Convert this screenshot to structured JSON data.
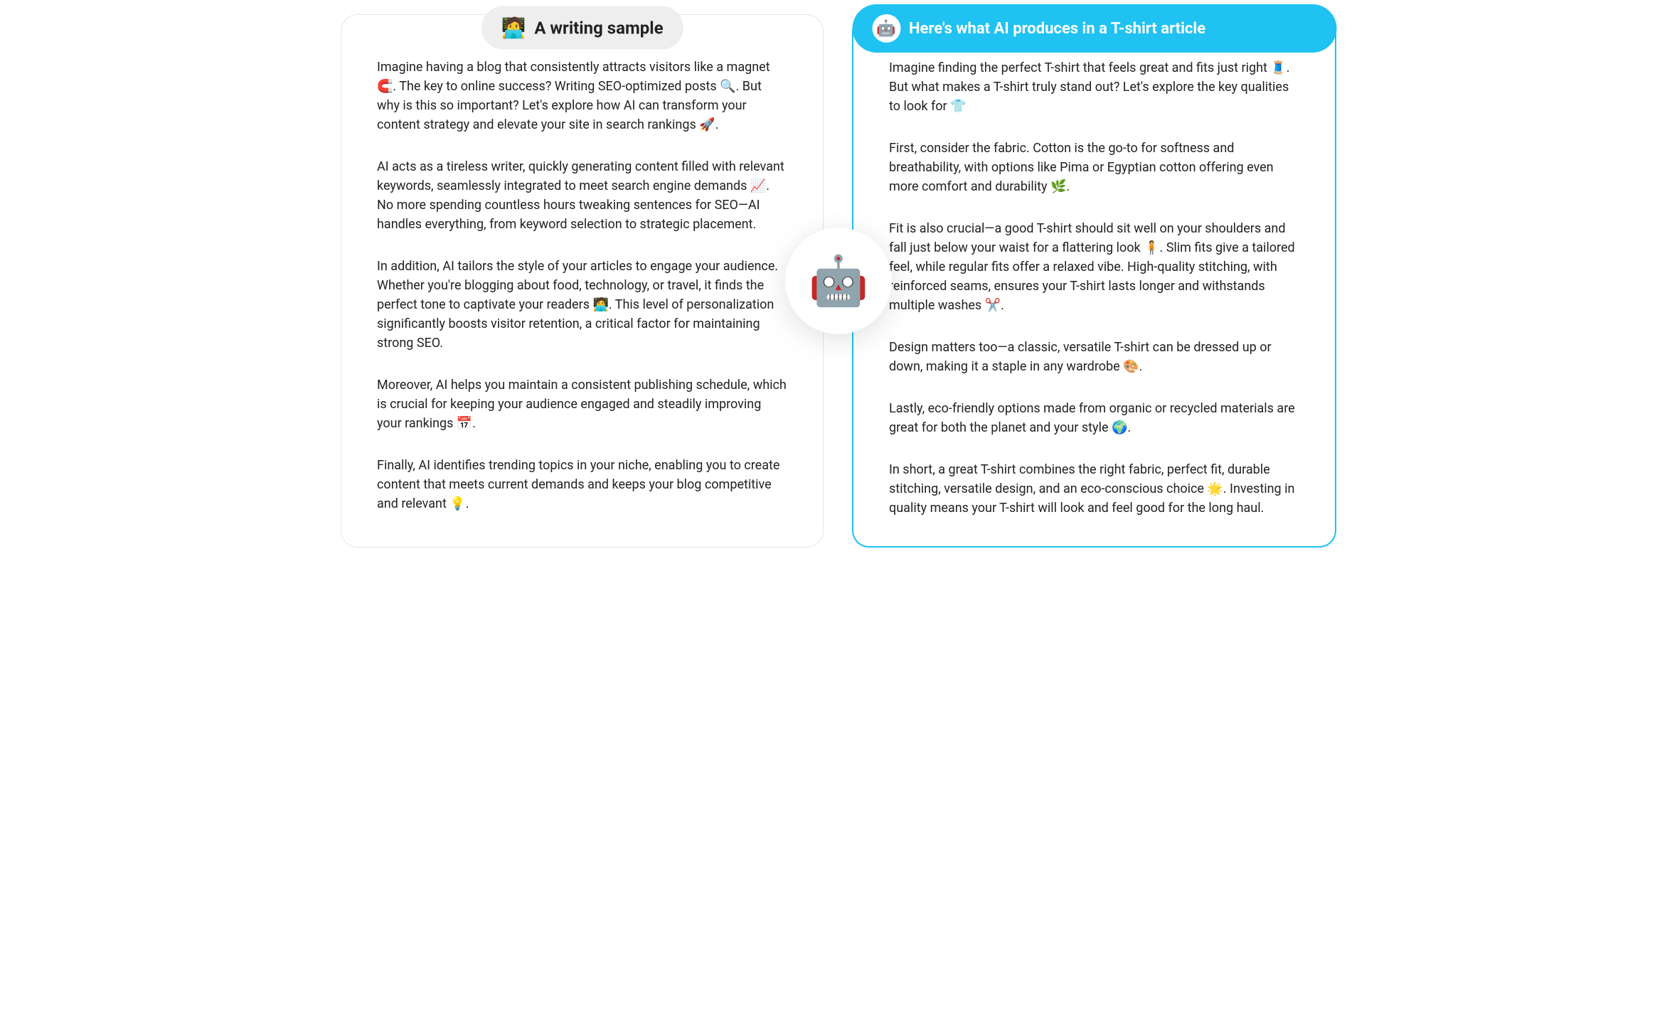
{
  "colors": {
    "accent": "#1fc2f1",
    "left_pill_bg": "#eeeeee",
    "left_pill_text": "#222222",
    "card_border_left": "#e5e5e5",
    "text": "#222222",
    "background": "#ffffff"
  },
  "center_icon": "🤖",
  "left": {
    "pill_icon": "🧑‍💻",
    "pill_title": "A writing sample",
    "paragraphs": [
      "Imagine having a blog that consistently attracts visitors like a magnet 🧲. The key to online success? Writing SEO-optimized posts 🔍. But why is this so important? Let's explore how AI can transform your content strategy and elevate your site in search rankings 🚀.",
      "AI acts as a tireless writer, quickly generating content filled with relevant keywords, seamlessly integrated to meet search engine demands 📈. No more spending countless hours tweaking sentences for SEO—AI handles everything, from keyword selection to strategic placement.",
      "In addition, AI tailors the style of your articles to engage your audience. Whether you're blogging about food, technology, or travel, it finds the perfect tone to captivate your readers 🧑‍💻. This level of personalization significantly boosts visitor retention, a critical factor for maintaining strong SEO.",
      "Moreover, AI helps you maintain a consistent publishing schedule, which is crucial for keeping your audience engaged and steadily improving your rankings 📅.",
      "Finally, AI identifies trending topics in your niche, enabling you to create content that meets current demands and keeps your blog competitive and relevant 💡."
    ]
  },
  "right": {
    "pill_icon": "🤖",
    "pill_title": "Here's what AI produces in a T-shirt article",
    "paragraphs": [
      "Imagine finding the perfect T-shirt that feels great and fits just right 🧵. But what makes a T-shirt truly stand out? Let's explore the key qualities to look for 👕",
      "First, consider the fabric. Cotton is the go-to for softness and breathability, with options like Pima or Egyptian cotton offering even more comfort and durability 🌿.",
      "Fit is also crucial—a good T-shirt should sit well on your shoulders and fall just below your waist for a flattering look 🧍. Slim fits give a tailored feel, while regular fits offer a relaxed vibe. High-quality stitching, with reinforced seams, ensures your T-shirt lasts longer and withstands multiple washes ✂️.",
      "Design matters too—a classic, versatile T-shirt can be dressed up or down, making it a staple in any wardrobe 🎨.",
      "Lastly, eco-friendly options made from organic or recycled materials are great for both the planet and your style 🌍.",
      "In short, a great T-shirt combines the right fabric, perfect fit, durable stitching, versatile design, and an eco-conscious choice 🌟. Investing in quality means your T-shirt will look and feel good for the long haul."
    ]
  }
}
